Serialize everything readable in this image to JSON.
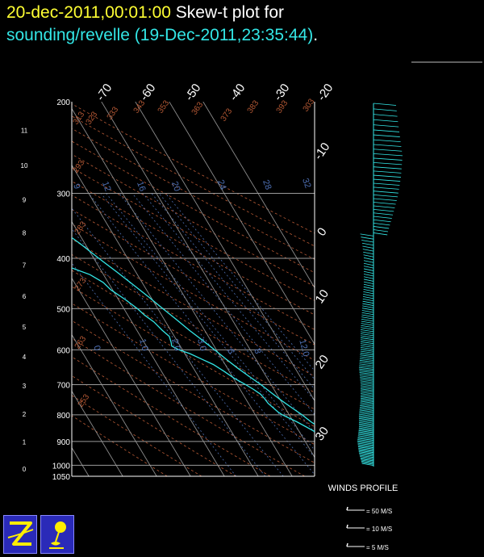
{
  "header": {
    "date": "20-dec-2011,00:01:00",
    "title": "Skew-t plot for",
    "subtitle": "sounding/revelle (19-Dec-2011,23:35:44)",
    "subtitle_end": "."
  },
  "colors": {
    "date": "#ffff33",
    "subtitle": "#33e6e6",
    "trace": "#33e6e6",
    "isotherm": "#8c8c8c",
    "dry_adiabat": "#b85a35",
    "mixing_ratio": "#4d6fb3",
    "wind": "#33e6e6"
  },
  "chart_data": {
    "type": "skew-t",
    "pressure_levels_hpa": [
      "200",
      "300",
      "400",
      "500",
      "600",
      "700",
      "800",
      "900",
      "1000",
      "1050"
    ],
    "height_km_labels": [
      "0",
      "1",
      "2",
      "3",
      "4",
      "5",
      "6",
      "7",
      "8",
      "9",
      "10",
      "11"
    ],
    "isotherm_labels_top": [
      "-70",
      "-60",
      "-50",
      "-40",
      "-30",
      "-20"
    ],
    "isotherm_labels_right": [
      "-10",
      "0",
      "10",
      "20",
      "30"
    ],
    "theta_labels": [
      "313",
      "323",
      "333",
      "343",
      "353",
      "363",
      "373",
      "383",
      "393",
      "303",
      "293",
      "283",
      "273",
      "263",
      "253"
    ],
    "mixing_ratio_labels": [
      "9",
      "12",
      "16",
      "20",
      "24",
      "28",
      "32"
    ],
    "mixing_ratio_low_labels": [
      "0",
      "1.0",
      "2.0",
      "3.0",
      "6",
      "8",
      "12.0"
    ],
    "isotherm_range_c": [
      -70,
      30
    ],
    "pressure_range_hpa": [
      200,
      1050
    ],
    "temperature_profile": [
      [
        1002,
        27.0
      ],
      [
        990,
        25.0
      ],
      [
        970,
        23.8
      ],
      [
        950,
        22.8
      ],
      [
        925,
        21.6
      ],
      [
        900,
        20.0
      ],
      [
        875,
        18.4
      ],
      [
        850,
        17.0
      ],
      [
        825,
        15.2
      ],
      [
        800,
        13.8
      ],
      [
        775,
        12.0
      ],
      [
        750,
        10.2
      ],
      [
        725,
        8.6
      ],
      [
        700,
        7.0
      ],
      [
        675,
        5.0
      ],
      [
        650,
        3.0
      ],
      [
        625,
        1.2
      ],
      [
        600,
        -0.5
      ],
      [
        575,
        -2.4
      ],
      [
        550,
        -4.5
      ],
      [
        525,
        -6.4
      ],
      [
        500,
        -8.5
      ],
      [
        475,
        -10.6
      ],
      [
        450,
        -13.0
      ],
      [
        425,
        -15.6
      ],
      [
        400,
        -18.5
      ],
      [
        375,
        -21.4
      ],
      [
        350,
        -25.0
      ],
      [
        325,
        -28.8
      ],
      [
        300,
        -32.5
      ],
      [
        275,
        -37.0
      ],
      [
        250,
        -42.0
      ],
      [
        225,
        -47.0
      ],
      [
        200,
        -52.5
      ]
    ],
    "dewpoint_profile": [
      [
        1002,
        24.5
      ],
      [
        990,
        22.8
      ],
      [
        970,
        21.2
      ],
      [
        950,
        20.0
      ],
      [
        925,
        18.8
      ],
      [
        900,
        17.5
      ],
      [
        875,
        15.8
      ],
      [
        850,
        13.5
      ],
      [
        825,
        11.0
      ],
      [
        800,
        8.0
      ],
      [
        790,
        7.2
      ],
      [
        775,
        6.5
      ],
      [
        760,
        5.8
      ],
      [
        745,
        5.6
      ],
      [
        730,
        5.2
      ],
      [
        715,
        4.0
      ],
      [
        700,
        2.5
      ],
      [
        680,
        0.2
      ],
      [
        660,
        -1.5
      ],
      [
        640,
        -3.5
      ],
      [
        625,
        -6.0
      ],
      [
        610,
        -8.5
      ],
      [
        600,
        -11.0
      ],
      [
        590,
        -12.5
      ],
      [
        580,
        -12.0
      ],
      [
        565,
        -11.5
      ],
      [
        550,
        -12.5
      ],
      [
        530,
        -13.5
      ],
      [
        515,
        -15.0
      ],
      [
        500,
        -16.0
      ],
      [
        480,
        -18.0
      ],
      [
        460,
        -20.5
      ],
      [
        445,
        -21.5
      ],
      [
        430,
        -24.0
      ],
      [
        415,
        -29.0
      ],
      [
        400,
        -32.0
      ],
      [
        380,
        -35.0
      ],
      [
        360,
        -39.5
      ],
      [
        340,
        -44.0
      ],
      [
        325,
        -48.0
      ],
      [
        310,
        -53.5
      ],
      [
        300,
        -58.5
      ],
      [
        290,
        -63.0
      ],
      [
        280,
        -63.5
      ],
      [
        270,
        -62.0
      ],
      [
        260,
        -62.5
      ],
      [
        250,
        -65.0
      ],
      [
        240,
        -68.0
      ],
      [
        225,
        -70.5
      ],
      [
        210,
        -72.0
      ],
      [
        200,
        -73.0
      ]
    ],
    "wind_profile": {
      "label": "WINDS PROFILE",
      "legend": [
        "50 M/S",
        "10 M/S",
        "5 M/S"
      ],
      "pressure_range_hpa": [
        200,
        1000
      ],
      "speed_ms": [
        [
          200,
          12
        ],
        [
          225,
          14
        ],
        [
          250,
          16
        ],
        [
          275,
          15
        ],
        [
          300,
          13
        ],
        [
          325,
          10
        ],
        [
          350,
          7
        ],
        [
          375,
          5
        ],
        [
          400,
          4
        ],
        [
          450,
          4
        ],
        [
          500,
          5
        ],
        [
          550,
          6
        ],
        [
          600,
          6
        ],
        [
          650,
          7
        ],
        [
          700,
          6
        ],
        [
          750,
          6
        ],
        [
          800,
          7
        ],
        [
          850,
          7
        ],
        [
          900,
          8
        ],
        [
          950,
          7
        ],
        [
          1000,
          5
        ]
      ]
    }
  }
}
